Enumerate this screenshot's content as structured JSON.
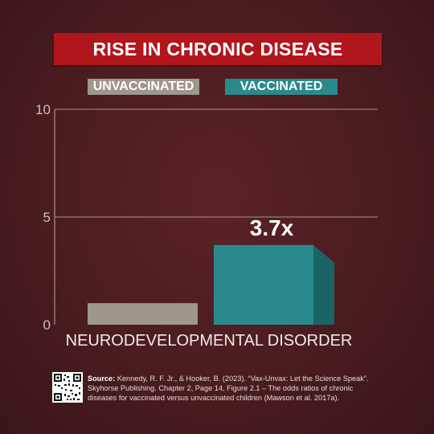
{
  "title": "RISE IN CHRONIC DISEASE",
  "legend": [
    {
      "label": "UNVACCINATED",
      "color": "#9e978c"
    },
    {
      "label": "VACCINATED",
      "color": "#2a8a8b"
    }
  ],
  "chart_data": {
    "type": "bar",
    "title": "RISE IN CHRONIC DISEASE",
    "categories": [
      "NEURODEVELOPMENTAL DISORDER"
    ],
    "series": [
      {
        "name": "UNVACCINATED",
        "values": [
          1.0
        ],
        "color": "#9e978c"
      },
      {
        "name": "VACCINATED",
        "values": [
          3.7
        ],
        "color": "#2a8a8b",
        "label": "3.7x"
      }
    ],
    "yticks": [
      0,
      5,
      10
    ],
    "ylim": [
      0,
      10
    ],
    "grid": true,
    "legend_position": "top"
  },
  "source": {
    "label": "Source:",
    "text": "Kennedy, R. F. Jr., & Hooker, B. (2023). “Vax-Unvax: Let the Science Speak”. Skyhorse Publishing. Chapter 2, Page 14, Figure 2.1 – The odds ratios of chronic diseases for vaccinated versus unvaccinated children (Mawson et al. 2017a)."
  }
}
